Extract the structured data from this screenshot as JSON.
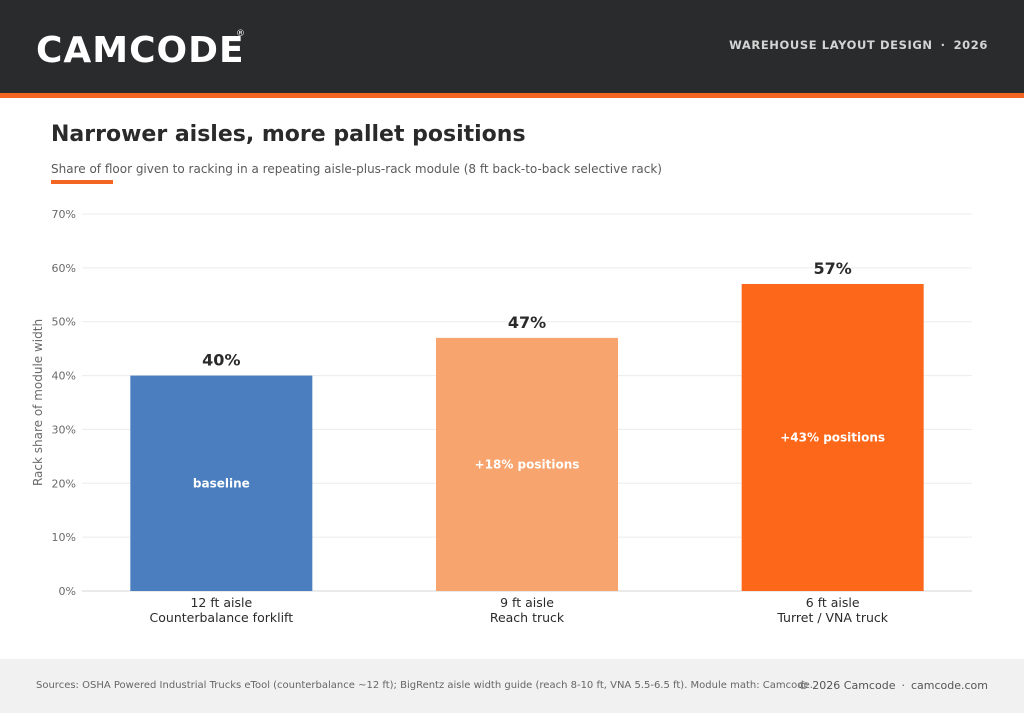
{
  "header": {
    "brand": "CAMCODE",
    "registered_mark": "®",
    "section": "WAREHOUSE LAYOUT DESIGN",
    "separator": "·",
    "year": "2026"
  },
  "chart_data": {
    "type": "bar",
    "title": "Narrower aisles, more pallet positions",
    "subtitle": "Share of floor given to racking in a repeating aisle-plus-rack module (8 ft back-to-back selective rack)",
    "ylabel": "Rack share of module width",
    "ylim": [
      0,
      70
    ],
    "yticks": [
      0,
      10,
      20,
      30,
      40,
      50,
      60,
      70
    ],
    "ytick_labels": [
      "0%",
      "10%",
      "20%",
      "30%",
      "40%",
      "50%",
      "60%",
      "70%"
    ],
    "grid": true,
    "categories": [
      [
        "12 ft aisle",
        "Counterbalance forklift"
      ],
      [
        "9 ft aisle",
        "Reach truck"
      ],
      [
        "6 ft aisle",
        "Turret / VNA truck"
      ]
    ],
    "values": [
      40,
      47,
      57
    ],
    "value_labels": [
      "40%",
      "47%",
      "57%"
    ],
    "inner_labels": [
      "baseline",
      "+18% positions",
      "+43% positions"
    ],
    "colors": [
      "#4a7ebf",
      "#f8a46e",
      "#fd6719"
    ]
  },
  "footer": {
    "sources": "Sources: OSHA Powered Industrial Trucks eTool (counterbalance ~12 ft); BigRentz aisle width guide (reach 8-10 ft, VNA 5.5-6.5 ft). Module math: Camcode.",
    "copyright": "© 2026 Camcode",
    "separator": "·",
    "site": "camcode.com"
  }
}
